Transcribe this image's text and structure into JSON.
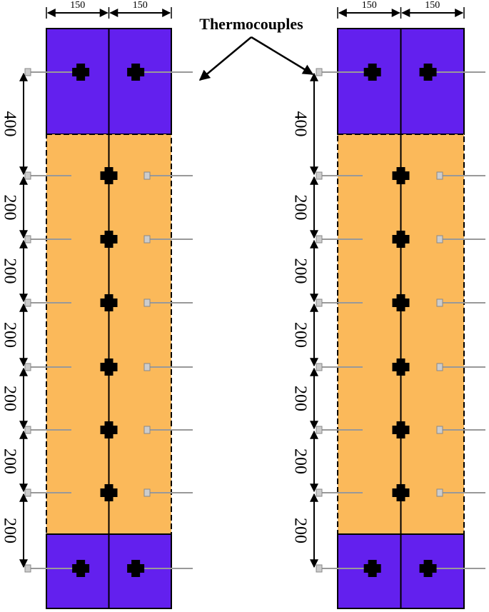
{
  "label": "Thermocouples",
  "panels": [
    {
      "width_labels": [
        "150",
        "150"
      ],
      "height_labels": [
        "400",
        "200",
        "200",
        "200",
        "200",
        "200",
        "200"
      ]
    },
    {
      "width_labels": [
        "150",
        "150"
      ],
      "height_labels": [
        "400",
        "200",
        "200",
        "200",
        "200",
        "200",
        "200"
      ]
    }
  ]
}
